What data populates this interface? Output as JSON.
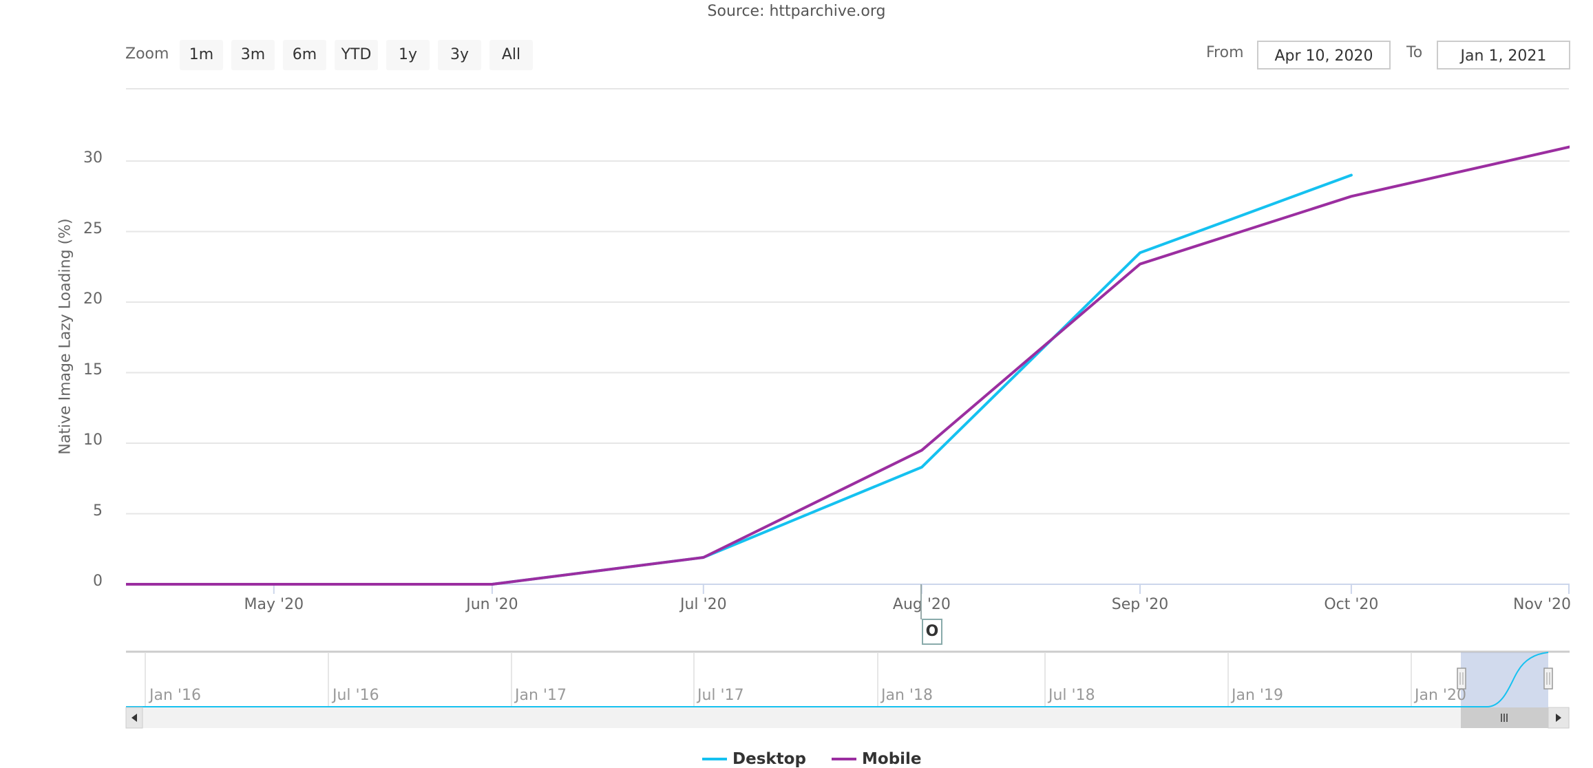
{
  "source": "Source: httparchive.org",
  "range_selector": {
    "zoom_label": "Zoom",
    "buttons": [
      "1m",
      "3m",
      "6m",
      "YTD",
      "1y",
      "3y",
      "All"
    ],
    "from_label": "From",
    "from_value": "Apr 10, 2020",
    "to_label": "To",
    "to_value": "Jan 1, 2021"
  },
  "crosshair_label": "O",
  "navigator": {
    "labels": [
      "Jan '16",
      "Jul '16",
      "Jan '17",
      "Jul '17",
      "Jan '18",
      "Jul '18",
      "Jan '19",
      "Jan '20"
    ]
  },
  "colors": {
    "desktop": "#15c1f0",
    "mobile": "#9b2ea0"
  },
  "chart_data": {
    "type": "line",
    "title": "",
    "subtitle": "Source: httparchive.org",
    "xlabel": "",
    "ylabel": "Native Image Lazy Loading (%)",
    "xlim": [
      "2020-04-10",
      "2020-11-01"
    ],
    "ylim": [
      0,
      30
    ],
    "yticks": [
      0,
      5,
      10,
      15,
      20,
      25,
      30
    ],
    "xticks": [
      {
        "date": "2020-05-01",
        "label": "May '20"
      },
      {
        "date": "2020-06-01",
        "label": "Jun '20"
      },
      {
        "date": "2020-07-01",
        "label": "Jul '20"
      },
      {
        "date": "2020-08-01",
        "label": "Aug '20"
      },
      {
        "date": "2020-09-01",
        "label": "Sep '20"
      },
      {
        "date": "2020-10-01",
        "label": "Oct '20"
      },
      {
        "date": "2020-11-01",
        "label": "Nov '20"
      }
    ],
    "grid": true,
    "legend": "bottom-center",
    "series": [
      {
        "name": "Desktop",
        "x": [
          "2020-04-01",
          "2020-05-01",
          "2020-06-01",
          "2020-07-01",
          "2020-08-01",
          "2020-09-01",
          "2020-10-01"
        ],
        "values": [
          0,
          0,
          0,
          1.9,
          8.3,
          23.5,
          29.0
        ]
      },
      {
        "name": "Mobile",
        "x": [
          "2020-04-01",
          "2020-05-01",
          "2020-06-01",
          "2020-07-01",
          "2020-08-01",
          "2020-09-01",
          "2020-10-01",
          "2020-11-01"
        ],
        "values": [
          0,
          0,
          0,
          1.9,
          9.5,
          22.7,
          27.5,
          31.0
        ]
      }
    ]
  }
}
